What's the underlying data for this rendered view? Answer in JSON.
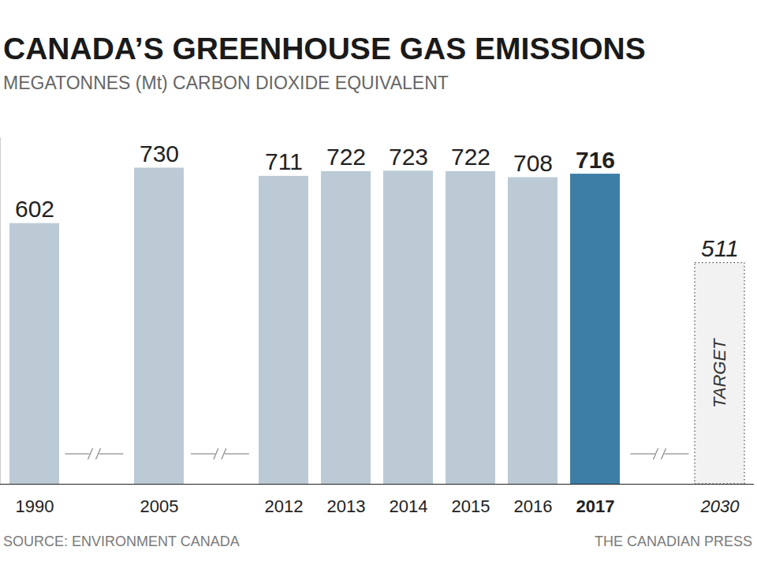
{
  "chart_data": {
    "type": "bar",
    "title": "CANADA’S GREENHOUSE GAS EMISSIONS",
    "subtitle": "MEGATONNES (Mt) CARBON DIOXIDE EQUIVALENT",
    "categories": [
      "1990",
      "2005",
      "2012",
      "2013",
      "2014",
      "2015",
      "2016",
      "2017",
      "2030"
    ],
    "values": [
      602,
      730,
      711,
      722,
      723,
      722,
      708,
      716,
      511
    ],
    "colors": [
      "#bccad5",
      "#bccad5",
      "#bccad5",
      "#bccad5",
      "#bccad5",
      "#bccad5",
      "#bccad5",
      "#3d7ea6",
      "#f2f2f2"
    ],
    "annotations": [
      {
        "category": "2030",
        "text": "TARGET"
      }
    ],
    "source": "SOURCE: ENVIRONMENT CANADA",
    "credit": "THE CANADIAN PRESS",
    "ylim": [
      0,
      800
    ],
    "yticks": [],
    "grid": false,
    "data_labels": true,
    "tick_labels": "x"
  }
}
